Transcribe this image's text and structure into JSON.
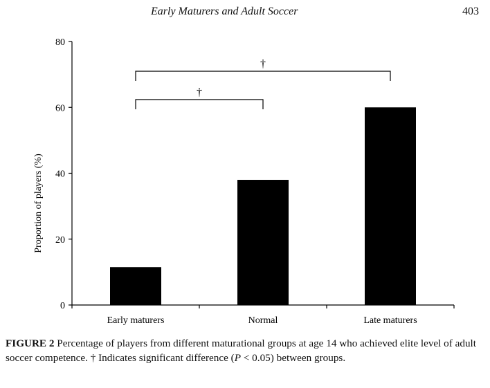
{
  "running_head": {
    "title": "Early Maturers and Adult Soccer",
    "page_number": "403"
  },
  "chart_data": {
    "type": "bar",
    "categories": [
      "Early maturers",
      "Normal",
      "Late maturers"
    ],
    "values": [
      11.5,
      38,
      60
    ],
    "title": "",
    "xlabel": "",
    "ylabel": "Proportion of players (%)",
    "ylim": [
      0,
      80
    ],
    "yticks": [
      0,
      20,
      40,
      60,
      80
    ],
    "bar_color": "#000000",
    "grid": false,
    "significance": [
      {
        "from": "Early maturers",
        "to": "Normal",
        "symbol": "†"
      },
      {
        "from": "Early maturers",
        "to": "Late maturers",
        "symbol": "†"
      }
    ]
  },
  "caption": {
    "label": "FIGURE 2",
    "text": "Percentage of players from different maturational groups at age 14 who achieved elite level of adult soccer competence. † Indicates significant difference (",
    "p_symbol": "P",
    "p_rest": " < 0.05) between groups."
  }
}
